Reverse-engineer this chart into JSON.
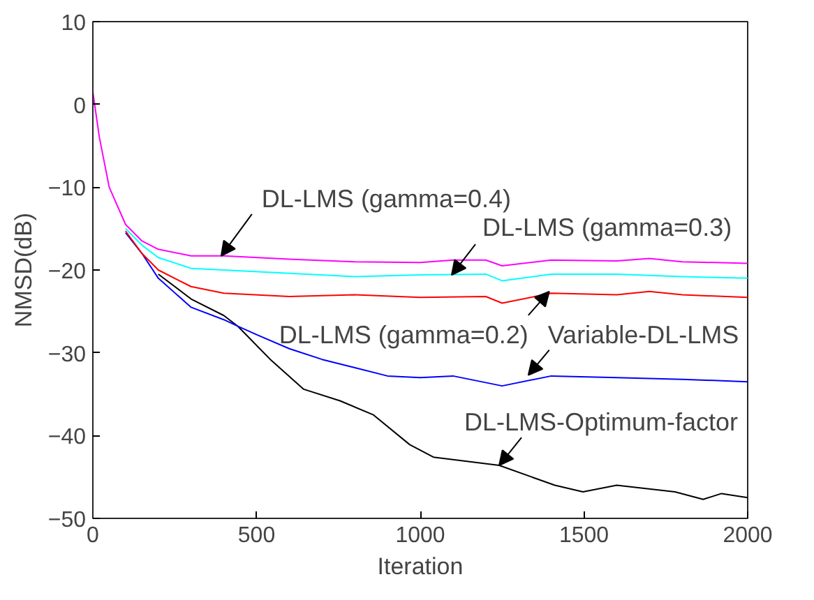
{
  "chart_data": {
    "type": "line",
    "xlabel": "Iteration",
    "ylabel": "NMSD(dB)",
    "xlim": [
      0,
      2000
    ],
    "ylim": [
      -50,
      10
    ],
    "xticks": [
      0,
      500,
      1000,
      1500,
      2000
    ],
    "yticks": [
      -50,
      -40,
      -30,
      -20,
      -10,
      0,
      10
    ],
    "grid": false,
    "line_style": "solid",
    "marker": "none",
    "series": [
      {
        "color": "#ff00ff",
        "x": [
          0,
          20,
          50,
          100,
          150,
          200,
          300,
          400,
          600,
          800,
          1000,
          1100,
          1200,
          1250,
          1400,
          1600,
          1700,
          1800,
          2000
        ],
        "values": [
          1.5,
          -4,
          -10,
          -14.5,
          -16.5,
          -17.5,
          -18.3,
          -18.3,
          -18.7,
          -19,
          -19.1,
          -18.8,
          -18.8,
          -19.5,
          -18.8,
          -18.9,
          -18.6,
          -19,
          -19.2
        ]
      },
      {
        "color": "#00ffff",
        "x": [
          100,
          150,
          200,
          300,
          400,
          600,
          800,
          1000,
          1200,
          1250,
          1400,
          1600,
          1800,
          2000
        ],
        "values": [
          -15,
          -17,
          -18.5,
          -19.8,
          -20,
          -20.4,
          -20.8,
          -20.6,
          -20.5,
          -21.3,
          -20.5,
          -20.5,
          -20.8,
          -21
        ]
      },
      {
        "color": "#ff0000",
        "x": [
          100,
          150,
          200,
          300,
          400,
          600,
          800,
          1000,
          1200,
          1250,
          1400,
          1600,
          1700,
          1800,
          2000
        ],
        "values": [
          -15.3,
          -18,
          -20,
          -22,
          -22.8,
          -23.2,
          -23,
          -23.3,
          -23.2,
          -24,
          -22.8,
          -23,
          -22.6,
          -23,
          -23.3
        ]
      },
      {
        "color": "#0000ff",
        "x": [
          100,
          150,
          200,
          300,
          400,
          443,
          500,
          600,
          700,
          800,
          900,
          1000,
          1100,
          1250,
          1400,
          1600,
          1800,
          2000
        ],
        "values": [
          -15.5,
          -18,
          -21,
          -24.5,
          -26,
          -26.8,
          -27.8,
          -29.5,
          -30.8,
          -31.8,
          -32.8,
          -33,
          -32.8,
          -34,
          -32.8,
          -33,
          -33.2,
          -33.5
        ]
      },
      {
        "color": "#000000",
        "x": [
          200,
          300,
          400,
          443,
          542,
          644,
          755,
          857,
          968,
          1040,
          1241,
          1411,
          1497,
          1600,
          1778,
          1864,
          1920,
          2000
        ],
        "values": [
          -20.5,
          -23.5,
          -25.5,
          -26.8,
          -30.8,
          -34.4,
          -35.8,
          -37.5,
          -41.1,
          -42.6,
          -43.6,
          -46,
          -46.8,
          -46,
          -46.8,
          -47.7,
          -47,
          -47.5
        ]
      }
    ],
    "annotations": [
      {
        "text": "DL-LMS (gamma=0.4)",
        "x": 392,
        "y": -18.3
      },
      {
        "text": "DL-LMS (gamma=0.3)",
        "x": 1096,
        "y": -20.6
      },
      {
        "text": "DL-LMS (gamma=0.2)",
        "x": 1394,
        "y": -22.6
      },
      {
        "text": "Variable-DL-LMS",
        "x": 1330,
        "y": -32.7
      },
      {
        "text": "DL-LMS-Optimum-factor",
        "x": 1241,
        "y": -43.6
      }
    ]
  }
}
